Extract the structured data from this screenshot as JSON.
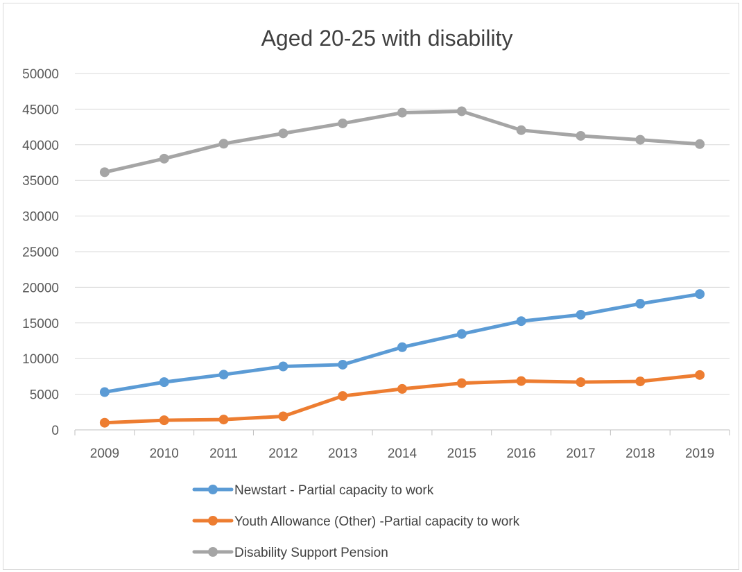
{
  "chart_data": {
    "type": "line",
    "title": "Aged 20-25 with disability",
    "xlabel": "",
    "ylabel": "",
    "categories": [
      "2009",
      "2010",
      "2011",
      "2012",
      "2013",
      "2014",
      "2015",
      "2016",
      "2017",
      "2018",
      "2019"
    ],
    "ylim": [
      0,
      50000
    ],
    "yticks": [
      0,
      5000,
      10000,
      15000,
      20000,
      25000,
      30000,
      35000,
      40000,
      45000,
      50000
    ],
    "grid": true,
    "legend_position": "bottom",
    "series": [
      {
        "name": "Newstart - Partial capacity to work",
        "color": "#5b9bd5",
        "values": [
          5300,
          6700,
          7750,
          8900,
          9150,
          11600,
          13450,
          15250,
          16150,
          17700,
          19050
        ]
      },
      {
        "name": "Youth Allowance (Other) -Partial capacity to work",
        "color": "#ed7d31",
        "values": [
          1000,
          1350,
          1450,
          1900,
          4750,
          5750,
          6550,
          6850,
          6700,
          6800,
          7700
        ]
      },
      {
        "name": "Disability Support Pension",
        "color": "#a5a5a5",
        "values": [
          36150,
          38050,
          40150,
          41600,
          43000,
          44500,
          44700,
          42050,
          41250,
          40700,
          40100
        ]
      }
    ]
  }
}
